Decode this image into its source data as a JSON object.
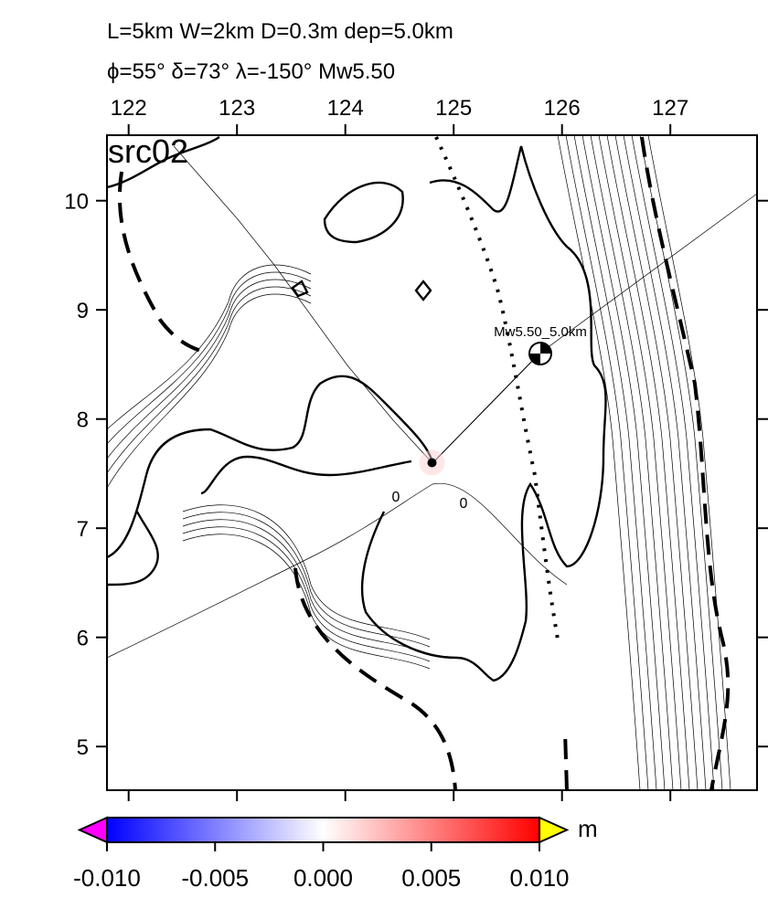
{
  "title_lines": [
    "L=5km W=2km D=0.3m dep=5.0km",
    "ϕ=55° δ=73° λ=-150° Mw5.50"
  ],
  "map": {
    "type": "map",
    "label": "src02",
    "xlim": [
      121.8,
      127.8
    ],
    "ylim": [
      4.6,
      10.6
    ],
    "xticks": [
      122,
      123,
      124,
      125,
      126,
      127
    ],
    "yticks": [
      5,
      6,
      7,
      8,
      9,
      10
    ],
    "epicenter": [
      124.8,
      7.6
    ],
    "mechanism": {
      "position": [
        125.8,
        8.6
      ],
      "label": "Mw5.50_5.0km"
    },
    "contour_labels": [
      "0",
      "0"
    ]
  },
  "colorbar": {
    "range": [
      -0.01,
      0.01
    ],
    "ticks": [
      {
        "value": -0.01,
        "label": "-0.010"
      },
      {
        "value": -0.005,
        "label": "-0.005"
      },
      {
        "value": 0,
        "label": "0.000"
      },
      {
        "value": 0.005,
        "label": "0.005"
      },
      {
        "value": 0.01,
        "label": "0.010"
      }
    ],
    "unit": "m",
    "colors": [
      "#0000ff",
      "#ffffff",
      "#ff0000"
    ],
    "below_color": "#ff00ff",
    "above_color": "#ffff00"
  }
}
